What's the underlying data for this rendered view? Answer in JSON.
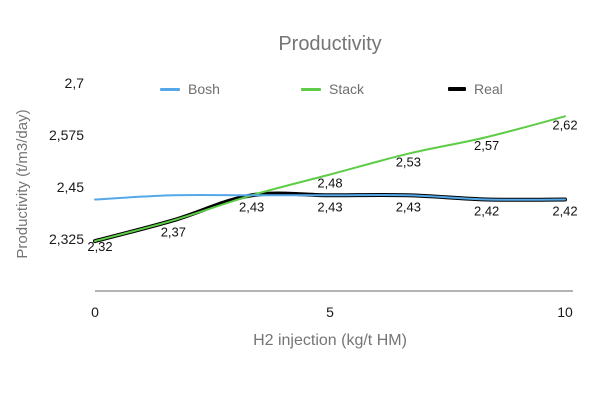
{
  "chart": {
    "title": "Productivity",
    "x_axis_title": "H2 injection (kg/t HM)",
    "y_axis_title": "Productivity (t/m3/day)"
  },
  "chart_data": {
    "type": "line",
    "title": "Productivity",
    "xlabel": "H2 injection (kg/t HM)",
    "ylabel": "Productivity (t/m3/day)",
    "x": [
      0,
      1.667,
      3.333,
      5,
      6.667,
      8.333,
      10
    ],
    "xlim": [
      0,
      10
    ],
    "ylim": [
      2.2,
      2.76
    ],
    "grid": false,
    "legend_position": "top",
    "decimal_separator": ",",
    "axis_color": "#9b9b9b",
    "x_ticks": {
      "values": [
        0,
        5,
        10
      ],
      "labels": [
        "0",
        "5",
        "10"
      ]
    },
    "y_ticks": {
      "values": [
        2.325,
        2.45,
        2.575,
        2.7
      ],
      "labels": [
        "2,325",
        "2,45",
        "2,575",
        "2,7"
      ]
    },
    "series": [
      {
        "name": "Bosh",
        "color": "#55a8e8",
        "width": 2,
        "values": [
          2.42,
          2.43,
          2.43,
          2.43,
          2.43,
          2.42,
          2.42
        ],
        "labels": null
      },
      {
        "name": "Stack",
        "color": "#5ecc46",
        "width": 2,
        "values": [
          2.32,
          2.37,
          2.43,
          2.48,
          2.53,
          2.57,
          2.62
        ],
        "labels": [
          null,
          null,
          null,
          "2,48",
          "2,53",
          "2,57",
          "2,62"
        ]
      },
      {
        "name": "Real",
        "color": "#000000",
        "width": 4,
        "values": [
          2.32,
          2.37,
          2.43,
          2.43,
          2.43,
          2.42,
          2.42
        ],
        "labels": [
          "2,32",
          "2,37",
          "2,43",
          "2,43",
          "2,43",
          "2,42",
          "2,42"
        ]
      }
    ]
  }
}
